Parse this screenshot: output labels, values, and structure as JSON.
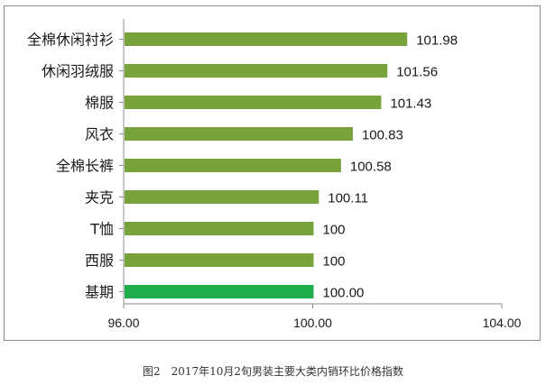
{
  "chart_data": {
    "type": "bar",
    "orientation": "horizontal",
    "categories": [
      "全棉休闲衬衫",
      "休闲羽绒服",
      "棉服",
      "风衣",
      "全棉长裤",
      "夹克",
      "T恤",
      "西服",
      "基期"
    ],
    "values": [
      101.98,
      101.56,
      101.43,
      100.83,
      100.58,
      100.11,
      100,
      100,
      100.0
    ],
    "value_labels": [
      "101.98",
      "101.56",
      "101.43",
      "100.83",
      "100.58",
      "100.11",
      "100",
      "100",
      "100.00"
    ],
    "xlim": [
      96,
      104
    ],
    "x_ticks": [
      96,
      100,
      104
    ],
    "x_tick_labels": [
      "96.00",
      "100.00",
      "104.00"
    ],
    "grid": false,
    "legend": "none",
    "colors": {
      "bar": "#77a33a",
      "bar_highlight": "#1fae4b",
      "axis": "#8c8c8c",
      "text": "#1a1a1a"
    },
    "highlight_category": "基期"
  },
  "caption": "图2　2017年10月2旬男装主要大类内销环比价格指数"
}
